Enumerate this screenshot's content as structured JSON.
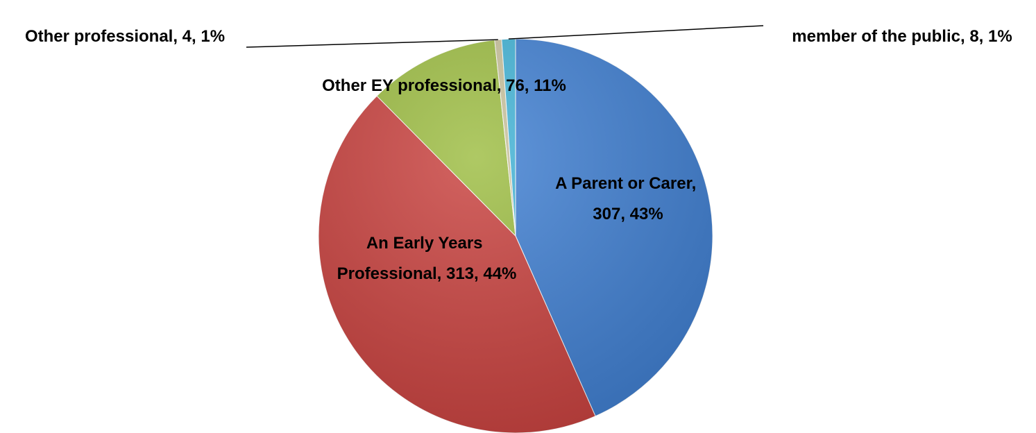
{
  "chart_data": {
    "type": "pie",
    "values": [
      307,
      313,
      76,
      4,
      8
    ],
    "value_labels": [
      "A Parent or Carer, 307, 43%",
      "An Early Years Professional, 313, 44%",
      "Other EY professional, 76, 11%",
      "Other professional, 4, 1%",
      "member of the public, 8, 1%"
    ],
    "colors": [
      "#3f7fd2",
      "#c9413e",
      "#9dbd42",
      "#c9c29c",
      "#41b3d6"
    ]
  }
}
